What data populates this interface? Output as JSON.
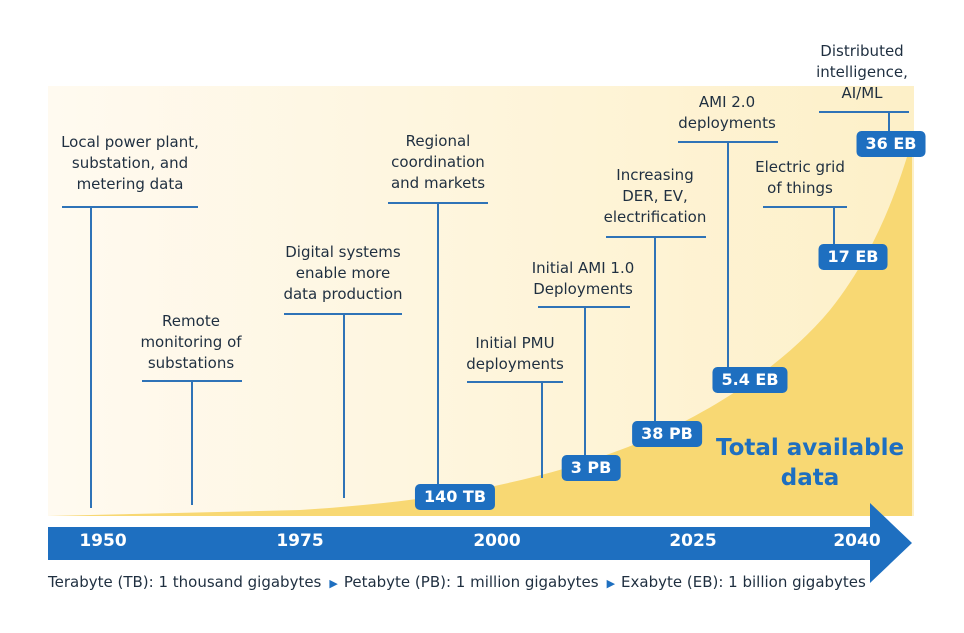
{
  "colors": {
    "accent": "#1e6fc0",
    "band_background": "#fef5d8",
    "curve_fill": "#f8d873",
    "line": "#2f73b7"
  },
  "milestones": [
    {
      "id": "local-power-plant",
      "lines": [
        "Local power plant,",
        "substation, and",
        "metering data"
      ]
    },
    {
      "id": "remote-monitoring",
      "lines": [
        "Remote",
        "monitoring of",
        "substations"
      ]
    },
    {
      "id": "digital-systems",
      "lines": [
        "Digital systems",
        "enable more",
        "data production"
      ]
    },
    {
      "id": "regional-coordination",
      "lines": [
        "Regional",
        "coordination",
        "and markets"
      ]
    },
    {
      "id": "initial-pmu",
      "lines": [
        "Initial PMU",
        "deployments"
      ]
    },
    {
      "id": "initial-ami",
      "lines": [
        "Initial AMI 1.0",
        "Deployments"
      ]
    },
    {
      "id": "increasing-der",
      "lines": [
        "Increasing",
        "DER, EV,",
        "electrification"
      ]
    },
    {
      "id": "ami-2",
      "lines": [
        "AMI 2.0",
        "deployments"
      ]
    },
    {
      "id": "electric-grid",
      "lines": [
        "Electric grid",
        "of things"
      ]
    },
    {
      "id": "distributed-intelligence",
      "lines": [
        "Distributed",
        "intelligence,",
        "AI/ML"
      ]
    }
  ],
  "badges": [
    "140 TB",
    "3 PB",
    "38 PB",
    "5.4 EB",
    "17 EB",
    "36 EB"
  ],
  "timeline": {
    "years": [
      "1950",
      "1975",
      "2000",
      "2025",
      "2040"
    ]
  },
  "total_label": [
    "Total available",
    "data"
  ],
  "legend": [
    "Terabyte (TB): 1 thousand gigabytes",
    "Petabyte (PB): 1 million gigabytes",
    "Exabyte (EB): 1 billion gigabytes"
  ]
}
